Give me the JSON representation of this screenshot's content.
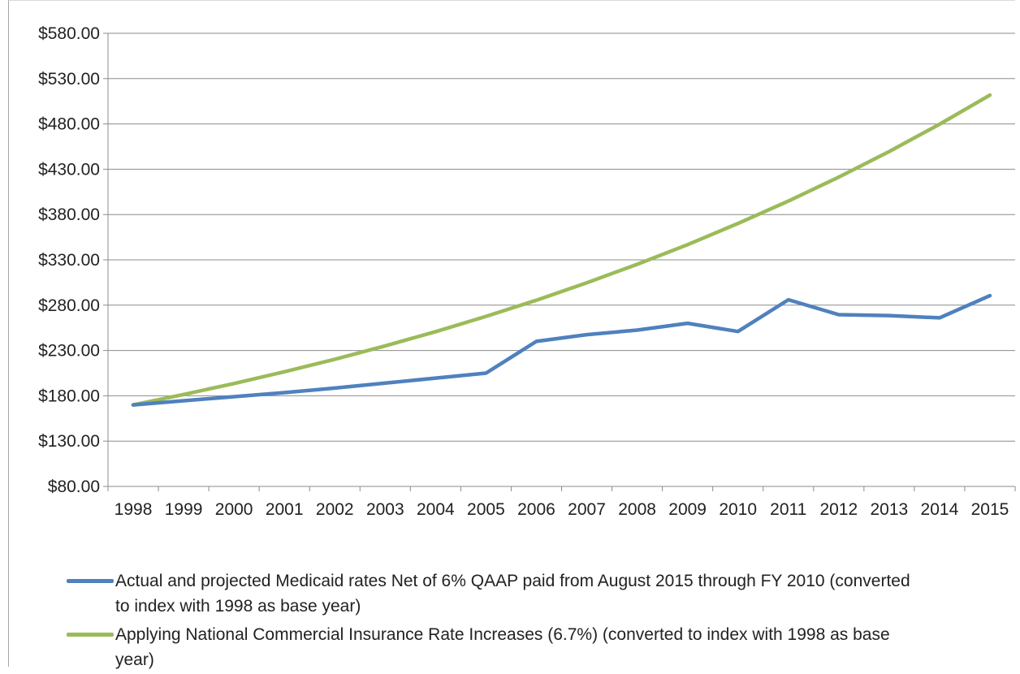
{
  "chart_data": {
    "type": "line",
    "title": "",
    "xlabel": "",
    "ylabel": "",
    "categories": [
      "1998",
      "1999",
      "2000",
      "2001",
      "2002",
      "2003",
      "2004",
      "2005",
      "2006",
      "2007",
      "2008",
      "2009",
      "2010",
      "2011",
      "2012",
      "2013",
      "2014",
      "2015"
    ],
    "ylim": [
      80,
      580
    ],
    "yticks": [
      80,
      130,
      180,
      230,
      280,
      330,
      380,
      430,
      480,
      530,
      580
    ],
    "ytick_labels": [
      "$80.00",
      "$130.00",
      "$180.00",
      "$230.00",
      "$280.00",
      "$330.00",
      "$380.00",
      "$430.00",
      "$480.00",
      "$530.00",
      "$580.00"
    ],
    "grid": true,
    "legend_position": "bottom",
    "series": [
      {
        "name": "Actual and projected Medicaid rates Net of 6% QAAP paid from August 2015 through FY 2010 (converted to index with 1998 as base year)",
        "color": "#4f81bd",
        "values": [
          170,
          174.5,
          179,
          183.5,
          188.5,
          194,
          199.5,
          205,
          240,
          247.5,
          252.5,
          260,
          251,
          286,
          269.5,
          268.5,
          266,
          290.5
        ]
      },
      {
        "name": "Applying National Commercial Insurance Rate Increases (6.7%) (converted to index with 1998 as base year)",
        "color": "#9bbb59",
        "values": [
          170,
          181.4,
          193.5,
          206.5,
          220.3,
          235.1,
          250.8,
          267.6,
          285.5,
          304.7,
          325.1,
          346.8,
          370.1,
          394.9,
          421.3,
          449.5,
          479.6,
          511.8
        ]
      }
    ]
  }
}
